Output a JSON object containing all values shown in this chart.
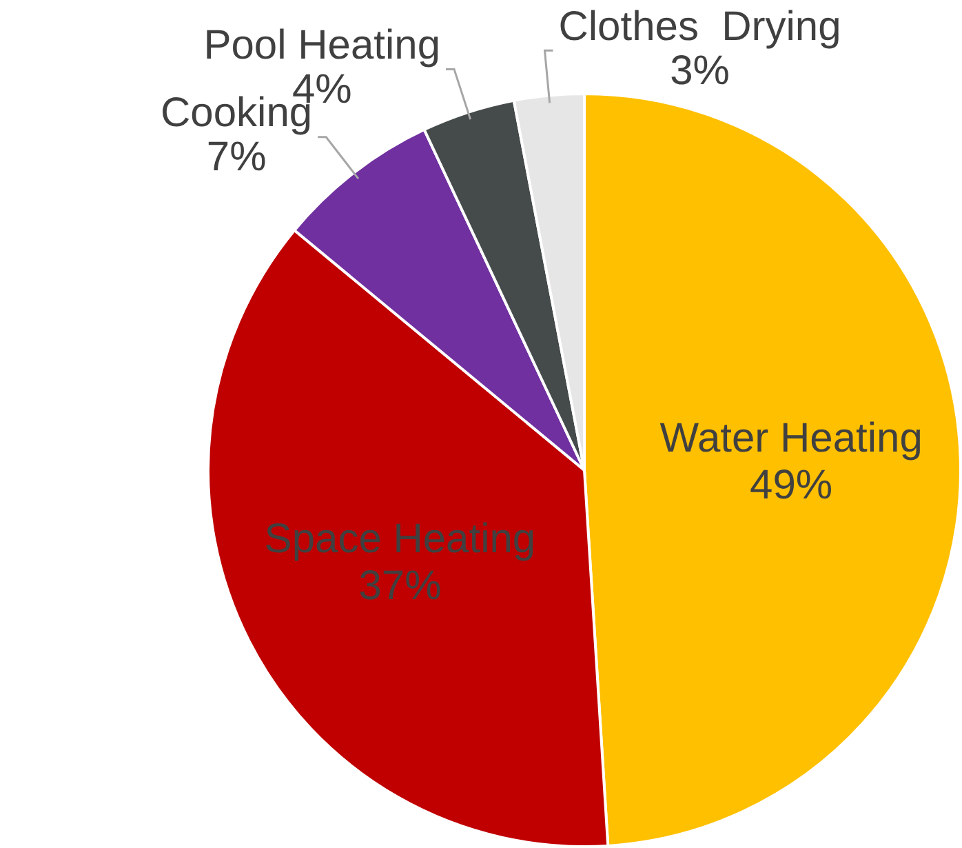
{
  "chart_data": {
    "type": "pie",
    "categories": [
      "Water Heating",
      "Space Heating",
      "Cooking",
      "Pool Heating",
      "Clothes  Drying"
    ],
    "values": [
      49,
      37,
      7,
      4,
      3
    ],
    "colors": [
      "#ffc000",
      "#c00000",
      "#7030a0",
      "#454a4a",
      "#e7e6e6"
    ],
    "value_labels": [
      "49%",
      "37%",
      "7%",
      "4%",
      "3%"
    ]
  }
}
